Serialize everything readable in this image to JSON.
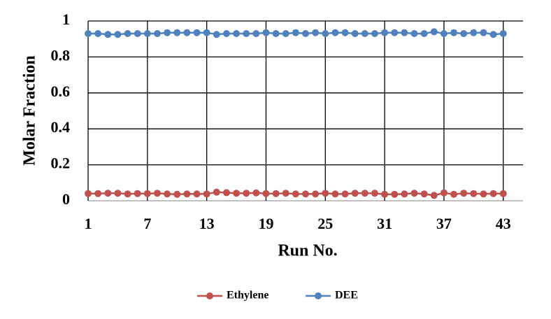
{
  "chart_data": {
    "type": "line",
    "x_label": "Run No.",
    "y_label": "Molar Fraction",
    "x": [
      1,
      2,
      3,
      4,
      5,
      6,
      7,
      8,
      9,
      10,
      11,
      12,
      13,
      14,
      15,
      16,
      17,
      18,
      19,
      20,
      21,
      22,
      23,
      24,
      25,
      26,
      27,
      28,
      29,
      30,
      31,
      32,
      33,
      34,
      35,
      36,
      37,
      38,
      39,
      40,
      41,
      42,
      43
    ],
    "series": [
      {
        "name": "Ethylene",
        "color": "#c0504d",
        "values": [
          0.04,
          0.04,
          0.042,
          0.042,
          0.038,
          0.04,
          0.04,
          0.042,
          0.038,
          0.036,
          0.038,
          0.038,
          0.038,
          0.048,
          0.045,
          0.042,
          0.042,
          0.044,
          0.04,
          0.04,
          0.042,
          0.038,
          0.038,
          0.038,
          0.042,
          0.038,
          0.038,
          0.042,
          0.042,
          0.042,
          0.036,
          0.036,
          0.038,
          0.042,
          0.038,
          0.03,
          0.044,
          0.036,
          0.042,
          0.04,
          0.038,
          0.04,
          0.04
        ]
      },
      {
        "name": "DEE",
        "color": "#4f81bd",
        "values": [
          0.93,
          0.93,
          0.925,
          0.925,
          0.93,
          0.93,
          0.93,
          0.93,
          0.935,
          0.935,
          0.935,
          0.935,
          0.935,
          0.925,
          0.93,
          0.93,
          0.93,
          0.93,
          0.935,
          0.93,
          0.93,
          0.935,
          0.93,
          0.935,
          0.93,
          0.935,
          0.935,
          0.93,
          0.93,
          0.93,
          0.935,
          0.935,
          0.935,
          0.93,
          0.93,
          0.94,
          0.93,
          0.935,
          0.93,
          0.935,
          0.935,
          0.925,
          0.93
        ]
      }
    ],
    "xlim": [
      1,
      45
    ],
    "xticks": [
      1,
      7,
      13,
      19,
      25,
      31,
      37,
      43
    ],
    "ylim": [
      0,
      1
    ],
    "yticks": [
      0,
      0.2,
      0.4,
      0.6,
      0.8,
      1
    ],
    "grid": true,
    "legend": "bottom"
  }
}
